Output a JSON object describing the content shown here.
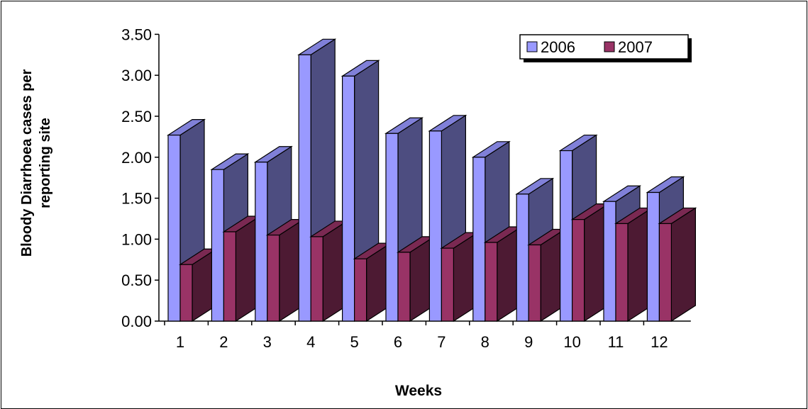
{
  "chart_data": {
    "type": "bar",
    "title": "",
    "xlabel": "Weeks",
    "ylabel_lines": [
      "Bloody Diarrhoea cases per",
      "reporting site"
    ],
    "categories": [
      "1",
      "2",
      "3",
      "4",
      "5",
      "6",
      "7",
      "8",
      "9",
      "10",
      "11",
      "12"
    ],
    "series": [
      {
        "name": "2006",
        "values": [
          2.27,
          1.85,
          1.94,
          3.25,
          2.99,
          2.29,
          2.32,
          2.0,
          1.55,
          2.08,
          1.46,
          1.57
        ],
        "color": "#9999ff",
        "side_color": "#4d4d80",
        "top_color": "#8080d8"
      },
      {
        "name": "2007",
        "values": [
          0.69,
          1.09,
          1.05,
          1.03,
          0.76,
          0.84,
          0.89,
          0.96,
          0.93,
          1.24,
          1.19,
          1.19
        ],
        "color": "#993366",
        "side_color": "#4d1a33",
        "top_color": "#7a2952"
      }
    ],
    "ylim": [
      0,
      3.5
    ],
    "yticks": [
      "0.00",
      "0.50",
      "1.00",
      "1.50",
      "2.00",
      "2.50",
      "3.00",
      "3.50"
    ],
    "legend_position": "top-right",
    "grid": false,
    "style": "3d-column"
  }
}
